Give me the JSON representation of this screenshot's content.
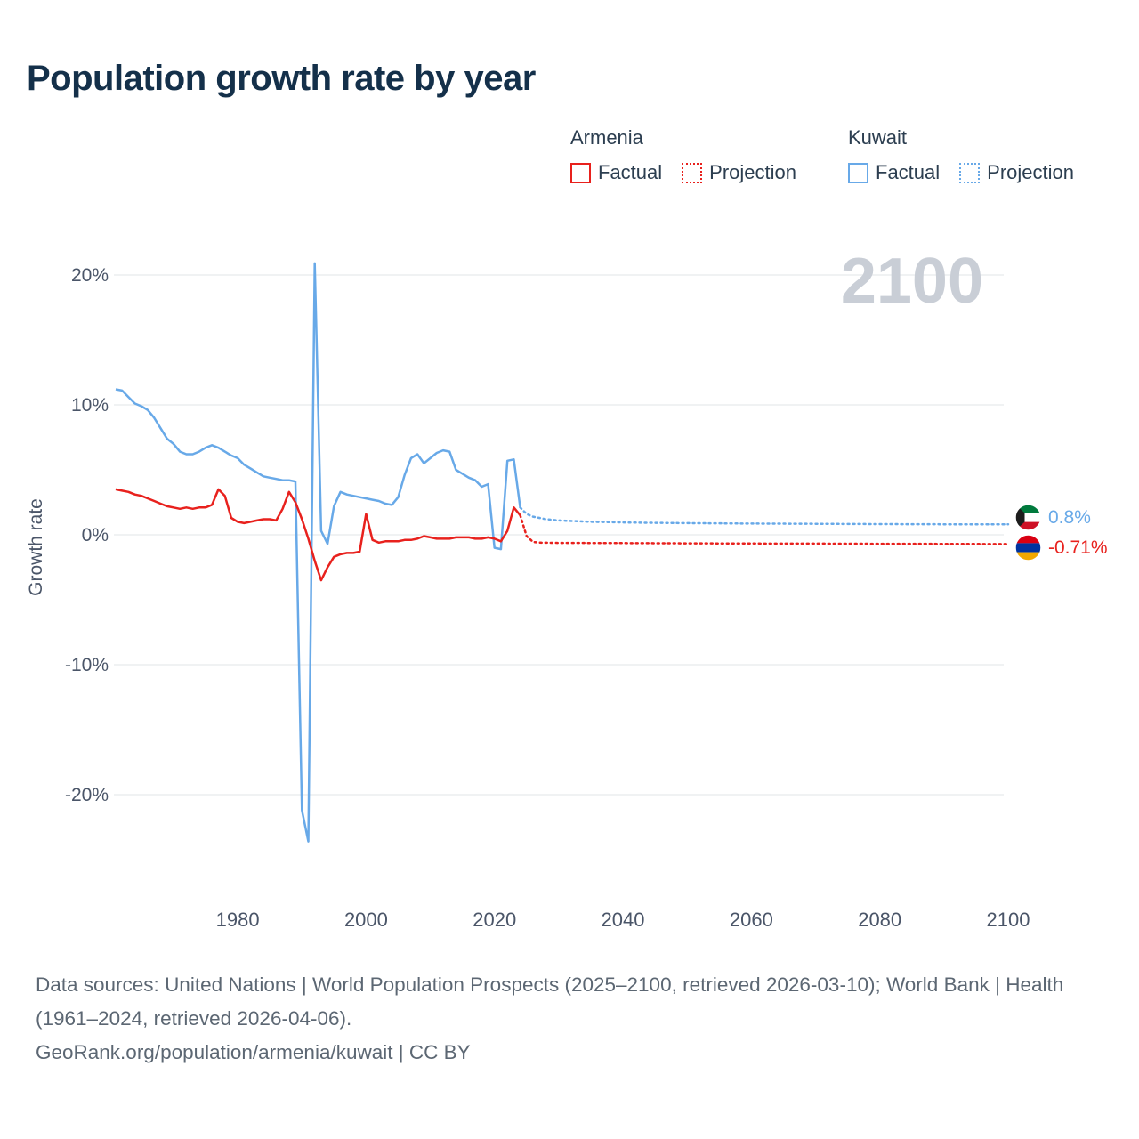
{
  "title": "Population growth rate by year",
  "watermark": "2100",
  "legend": {
    "armenia_label": "Armenia",
    "kuwait_label": "Kuwait",
    "factual_label": "Factual",
    "projection_label": "Projection"
  },
  "end_labels": {
    "kuwait_value": "0.8%",
    "armenia_value": "-0.71%"
  },
  "footer": {
    "line1": "Data sources: United Nations | World Population Prospects (2025–2100, retrieved 2026-03-10); World Bank | Health (1961–2024, retrieved 2026-04-06).",
    "line2": "GeoRank.org/population/armenia/kuwait | CC BY"
  },
  "colors": {
    "armenia": "#e8211d",
    "kuwait": "#68a9e8",
    "title": "#14304a",
    "legend_text": "#2c3e50",
    "tick_text": "#4a5568",
    "watermark": "#c9ced6",
    "footer_text": "#5c6773",
    "grid": "#e7e9ec"
  },
  "chart_data": {
    "type": "line",
    "title": "Population growth rate by year",
    "xlabel": "",
    "ylabel": "Growth rate",
    "xlim": [
      1961,
      2100
    ],
    "ylim": [
      -25,
      22
    ],
    "grid": "horizontal",
    "legend_position": "top-right",
    "x_ticks": [
      1980,
      2000,
      2020,
      2040,
      2060,
      2080,
      2100
    ],
    "x_tick_labels": [
      "1980",
      "2000",
      "2020",
      "2040",
      "2060",
      "2080",
      "2100"
    ],
    "y_ticks": [
      20,
      10,
      0,
      -10,
      -20
    ],
    "y_tick_labels": [
      "20%",
      "10%",
      "0%",
      "-10%",
      "-20%"
    ],
    "series": [
      {
        "id": "kuwait-factual",
        "name": "Kuwait Factual",
        "color": "#68a9e8",
        "style": "solid",
        "x": [
          1961,
          1962,
          1963,
          1964,
          1965,
          1966,
          1967,
          1968,
          1969,
          1970,
          1971,
          1972,
          1973,
          1974,
          1975,
          1976,
          1977,
          1978,
          1979,
          1980,
          1981,
          1982,
          1983,
          1984,
          1985,
          1986,
          1987,
          1988,
          1989,
          1990,
          1991,
          1992,
          1993,
          1994,
          1995,
          1996,
          1997,
          1998,
          1999,
          2000,
          2001,
          2002,
          2003,
          2004,
          2005,
          2006,
          2007,
          2008,
          2009,
          2010,
          2011,
          2012,
          2013,
          2014,
          2015,
          2016,
          2017,
          2018,
          2019,
          2020,
          2021,
          2022,
          2023,
          2024
        ],
        "y": [
          11.2,
          11.1,
          10.6,
          10.1,
          9.9,
          9.6,
          9.0,
          8.2,
          7.4,
          7.0,
          6.4,
          6.2,
          6.2,
          6.4,
          6.7,
          6.9,
          6.7,
          6.4,
          6.1,
          5.9,
          5.4,
          5.1,
          4.8,
          4.5,
          4.4,
          4.3,
          4.2,
          4.2,
          4.1,
          -21.2,
          -23.6,
          20.9,
          0.3,
          -0.7,
          2.2,
          3.3,
          3.1,
          3.0,
          2.9,
          2.8,
          2.7,
          2.6,
          2.4,
          2.3,
          2.9,
          4.6,
          5.9,
          6.2,
          5.5,
          5.9,
          6.3,
          6.5,
          6.4,
          5.0,
          4.7,
          4.4,
          4.2,
          3.7,
          3.9,
          -1.0,
          -1.1,
          5.7,
          5.8,
          2.1
        ]
      },
      {
        "id": "kuwait-projection",
        "name": "Kuwait Projection",
        "color": "#68a9e8",
        "style": "dotted",
        "x": [
          2024,
          2025,
          2026,
          2027,
          2028,
          2030,
          2035,
          2040,
          2045,
          2050,
          2060,
          2070,
          2080,
          2090,
          2100
        ],
        "y": [
          2.1,
          1.6,
          1.4,
          1.3,
          1.2,
          1.1,
          1.0,
          0.95,
          0.92,
          0.9,
          0.86,
          0.84,
          0.82,
          0.81,
          0.8
        ]
      },
      {
        "id": "armenia-factual",
        "name": "Armenia Factual",
        "color": "#e8211d",
        "style": "solid",
        "x": [
          1961,
          1962,
          1963,
          1964,
          1965,
          1966,
          1967,
          1968,
          1969,
          1970,
          1971,
          1972,
          1973,
          1974,
          1975,
          1976,
          1977,
          1978,
          1979,
          1980,
          1981,
          1982,
          1983,
          1984,
          1985,
          1986,
          1987,
          1988,
          1989,
          1990,
          1991,
          1992,
          1993,
          1994,
          1995,
          1996,
          1997,
          1998,
          1999,
          2000,
          2001,
          2002,
          2003,
          2004,
          2005,
          2006,
          2007,
          2008,
          2009,
          2010,
          2011,
          2012,
          2013,
          2014,
          2015,
          2016,
          2017,
          2018,
          2019,
          2020,
          2021,
          2022,
          2023,
          2024
        ],
        "y": [
          3.5,
          3.4,
          3.3,
          3.1,
          3.0,
          2.8,
          2.6,
          2.4,
          2.2,
          2.1,
          2.0,
          2.1,
          2.0,
          2.1,
          2.1,
          2.3,
          3.5,
          3.0,
          1.3,
          1.0,
          0.9,
          1.0,
          1.1,
          1.2,
          1.2,
          1.1,
          2.0,
          3.3,
          2.5,
          1.2,
          -0.3,
          -2.0,
          -3.5,
          -2.5,
          -1.7,
          -1.5,
          -1.4,
          -1.4,
          -1.3,
          1.6,
          -0.4,
          -0.6,
          -0.5,
          -0.5,
          -0.5,
          -0.4,
          -0.4,
          -0.3,
          -0.1,
          -0.2,
          -0.3,
          -0.3,
          -0.3,
          -0.2,
          -0.2,
          -0.2,
          -0.3,
          -0.3,
          -0.2,
          -0.3,
          -0.5,
          0.3,
          2.1,
          1.5
        ]
      },
      {
        "id": "armenia-projection",
        "name": "Armenia Projection",
        "color": "#e8211d",
        "style": "dotted",
        "x": [
          2024,
          2025,
          2026,
          2027,
          2030,
          2040,
          2050,
          2060,
          2070,
          2080,
          2090,
          2100
        ],
        "y": [
          1.5,
          -0.1,
          -0.55,
          -0.6,
          -0.62,
          -0.64,
          -0.66,
          -0.67,
          -0.68,
          -0.69,
          -0.7,
          -0.71
        ]
      }
    ]
  }
}
